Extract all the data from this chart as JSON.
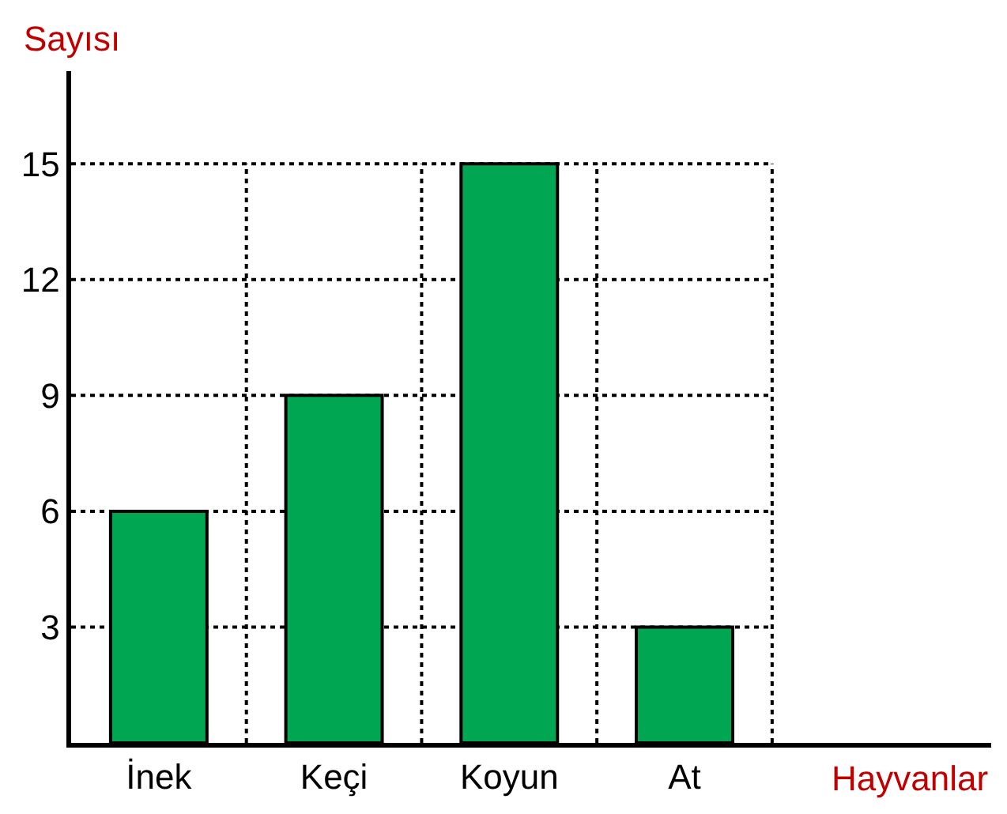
{
  "chart_data": {
    "type": "bar",
    "xlabel": "Hayvanlar",
    "ylabel": "Sayısı",
    "categories": [
      "İnek",
      "Keçi",
      "Koyun",
      "At"
    ],
    "values": [
      6,
      9,
      15,
      3
    ],
    "color": "#00a651",
    "ylim": [
      0,
      17.4
    ],
    "yticks": [
      3,
      6,
      9,
      12,
      15
    ],
    "grid": true,
    "legend": false
  }
}
